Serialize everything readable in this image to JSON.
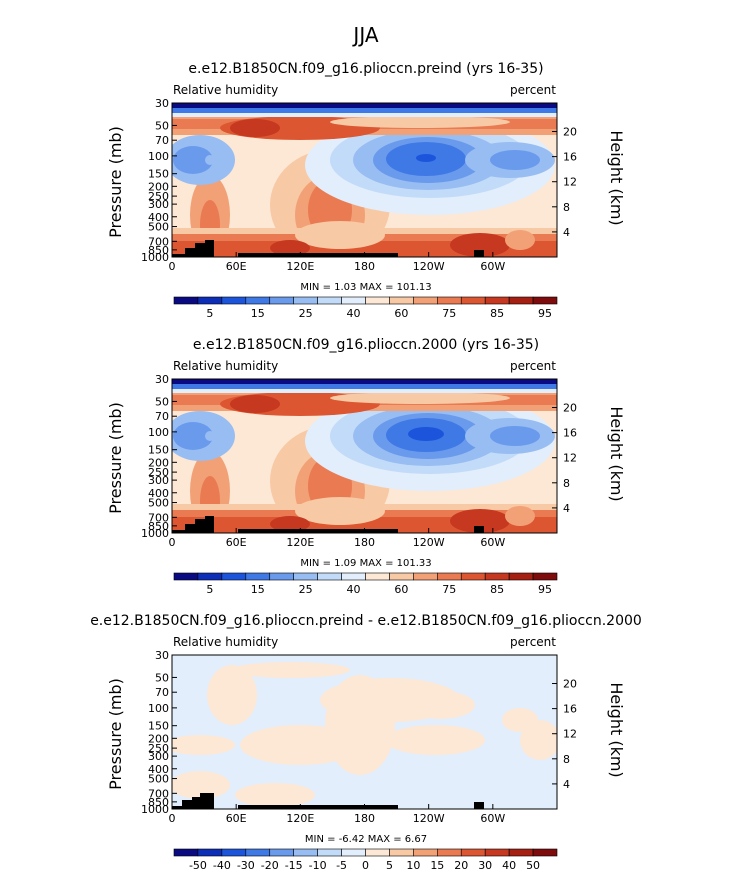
{
  "figure": {
    "title": "JJA"
  },
  "chart_data": [
    {
      "type": "heatmap",
      "title": "e.e12.B1850CN.f09_g16.plioccn.preind (yrs 16-35)",
      "left_label": "Relative humidity",
      "right_label": "percent",
      "ylabel": "Pressure (mb)",
      "ylabel_right": "Height (km)",
      "x_tick_labels": [
        "0",
        "60E",
        "120E",
        "180",
        "120W",
        "60W"
      ],
      "y_tick_labels": [
        "30",
        "50",
        "70",
        "100",
        "150",
        "200",
        "250",
        "300",
        "400",
        "500",
        "700",
        "850",
        "1000"
      ],
      "height_tick_labels": [
        "20",
        "16",
        "12",
        "8",
        "4"
      ],
      "min_max_text": "MIN =    1.03   MAX = 101.13",
      "min": 1.03,
      "max": 101.13,
      "colorbar_levels": [
        "5",
        "15",
        "25",
        "40",
        "60",
        "75",
        "85",
        "95"
      ],
      "colorbar_colors": [
        "#0a0a82",
        "#0d2fb8",
        "#1c55dc",
        "#3f79e6",
        "#6a9aec",
        "#98bdf3",
        "#c2dbf8",
        "#e2eefb",
        "#fde8d6",
        "#f8c9a5",
        "#f2a177",
        "#ea7a52",
        "#dd5632",
        "#c6381f",
        "#a51f12",
        "#7e0c0c"
      ]
    },
    {
      "type": "heatmap",
      "title": "e.e12.B1850CN.f09_g16.plioccn.2000 (yrs 16-35)",
      "left_label": "Relative humidity",
      "right_label": "percent",
      "ylabel": "Pressure (mb)",
      "ylabel_right": "Height (km)",
      "x_tick_labels": [
        "0",
        "60E",
        "120E",
        "180",
        "120W",
        "60W"
      ],
      "y_tick_labels": [
        "30",
        "50",
        "70",
        "100",
        "150",
        "200",
        "250",
        "300",
        "400",
        "500",
        "700",
        "850",
        "1000"
      ],
      "height_tick_labels": [
        "20",
        "16",
        "12",
        "8",
        "4"
      ],
      "min_max_text": "MIN =    1.09   MAX = 101.33",
      "min": 1.09,
      "max": 101.33,
      "colorbar_levels": [
        "5",
        "15",
        "25",
        "40",
        "60",
        "75",
        "85",
        "95"
      ],
      "colorbar_colors": [
        "#0a0a82",
        "#0d2fb8",
        "#1c55dc",
        "#3f79e6",
        "#6a9aec",
        "#98bdf3",
        "#c2dbf8",
        "#e2eefb",
        "#fde8d6",
        "#f8c9a5",
        "#f2a177",
        "#ea7a52",
        "#dd5632",
        "#c6381f",
        "#a51f12",
        "#7e0c0c"
      ]
    },
    {
      "type": "heatmap",
      "title": "e.e12.B1850CN.f09_g16.plioccn.preind - e.e12.B1850CN.f09_g16.plioccn.2000",
      "left_label": "Relative humidity",
      "right_label": "percent",
      "ylabel": "Pressure (mb)",
      "ylabel_right": "Height (km)",
      "x_tick_labels": [
        "0",
        "60E",
        "120E",
        "180",
        "120W",
        "60W"
      ],
      "y_tick_labels": [
        "30",
        "50",
        "70",
        "100",
        "150",
        "200",
        "250",
        "300",
        "400",
        "500",
        "700",
        "850",
        "1000"
      ],
      "height_tick_labels": [
        "20",
        "16",
        "12",
        "8",
        "4"
      ],
      "min_max_text": "MIN =   -6.42   MAX =   6.67",
      "min": -6.42,
      "max": 6.67,
      "colorbar_levels": [
        "-50",
        "-40",
        "-30",
        "-20",
        "-15",
        "-10",
        "-5",
        "0",
        "5",
        "10",
        "15",
        "20",
        "30",
        "40",
        "50"
      ],
      "colorbar_colors": [
        "#0a0a82",
        "#0d2fb8",
        "#1c55dc",
        "#3f79e6",
        "#6a9aec",
        "#98bdf3",
        "#c2dbf8",
        "#e2eefb",
        "#fde8d6",
        "#f8c9a5",
        "#f2a177",
        "#ea7a52",
        "#dd5632",
        "#c6381f",
        "#a51f12",
        "#7e0c0c"
      ]
    }
  ]
}
